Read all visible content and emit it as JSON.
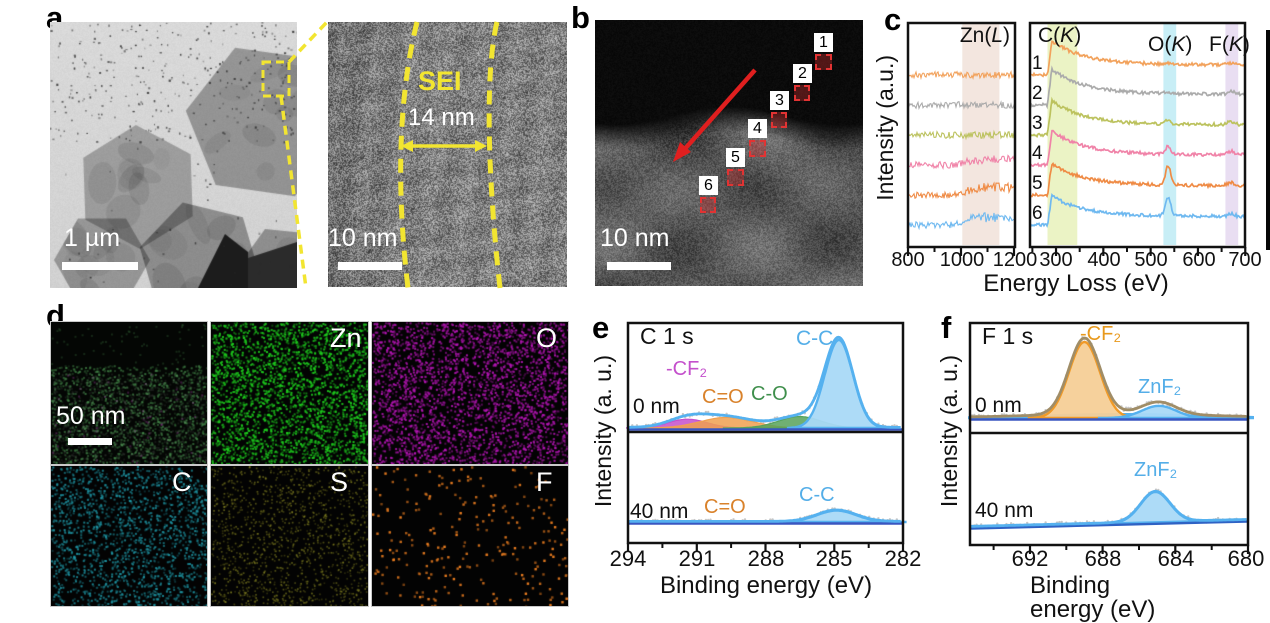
{
  "figure": {
    "panels": {
      "a": {
        "label": "a",
        "scalebar_left": "1 µm",
        "scalebar_right": "10 nm",
        "sei": "SEI",
        "thickness": "14 nm"
      },
      "b": {
        "label": "b",
        "scalebar": "10 nm",
        "boxes": [
          "1",
          "2",
          "3",
          "4",
          "5",
          "6"
        ]
      },
      "c": {
        "label": "c"
      },
      "d": {
        "label": "d",
        "scalebar": "50 nm",
        "elements": [
          "Zn",
          "O",
          "C",
          "S",
          "F"
        ],
        "map_colors": {
          "zn": "#1ecf1e",
          "o": "#bb16bb",
          "c": "#1f99a8",
          "s": "#a8a62a",
          "f": "#f08020"
        }
      },
      "e": {
        "label": "e"
      },
      "f": {
        "label": "f"
      }
    },
    "annotation_colors": {
      "yellow": "#f2e531",
      "red": "#e01f1f"
    }
  },
  "chart_data": [
    {
      "id": "eels-line-scan",
      "type": "line",
      "ylabel": "Intensity (a.u.)",
      "xlabel": "Energy Loss (eV)",
      "left_plot": {
        "xlim": [
          800,
          1204
        ],
        "major_ticks": [
          800,
          1000,
          1200
        ],
        "minor_ticks": [
          900,
          1100
        ],
        "edge_band": {
          "label_pre": "Zn(",
          "label_it": "L",
          "label_post": ")",
          "range_eV": [
            1005,
            1145
          ],
          "color": "#f3e6df"
        }
      },
      "right_plot": {
        "xlim": [
          245,
          700
        ],
        "major_ticks": [
          300,
          400,
          500,
          600,
          700
        ],
        "minor_ticks": [
          250,
          350,
          450,
          550,
          650
        ],
        "edge_bands": [
          {
            "label_pre": "C(",
            "label_it": "K",
            "label_post": ")",
            "range_eV": [
              282,
              345
            ],
            "color": "#ebf3c5"
          },
          {
            "label_pre": "O(",
            "label_it": "K",
            "label_post": ")",
            "range_eV": [
              527,
              554
            ],
            "color": "#c8eef6"
          },
          {
            "label_pre": "F(",
            "label_it": "K",
            "label_post": ")",
            "range_eV": [
              658,
              685
            ],
            "color": "#e9def2"
          }
        ]
      },
      "edge_onsets_eV": {
        "zn_L": 1020,
        "c_K": 284,
        "o_K": 532,
        "f_K": 685
      },
      "series": [
        {
          "label": "1",
          "color": "#f2a25c",
          "zn_L_edge": 0,
          "c_k": 1.0,
          "o_k": 0.05,
          "f_k": 0.3
        },
        {
          "label": "2",
          "color": "#ababab",
          "zn_L_edge": 0,
          "c_k": 1.05,
          "o_k": 0.08,
          "f_k": 0.55
        },
        {
          "label": "3",
          "color": "#bcc25e",
          "zn_L_edge": 0,
          "c_k": 1.0,
          "o_k": 0.2,
          "f_k": 0.55
        },
        {
          "label": "4",
          "color": "#f083a8",
          "zn_L_edge": 0.7,
          "c_k": 1.0,
          "o_k": 0.3,
          "f_k": 0.55
        },
        {
          "label": "5",
          "color": "#ef8b45",
          "zn_L_edge": 1.0,
          "c_k": 0.92,
          "o_k": 0.75,
          "f_k": 0.5
        },
        {
          "label": "6",
          "color": "#6fb9f0",
          "zn_L_edge": 1.0,
          "c_k": 0.85,
          "o_k": 0.7,
          "f_k": 0.35
        }
      ]
    },
    {
      "id": "xps-c1s",
      "type": "area",
      "title": "C 1 s",
      "xlabel": "Binding energy (eV)",
      "ylabel": "Intensity (a. u.)",
      "xlim": [
        294,
        282
      ],
      "major_ticks": [
        294,
        291,
        288,
        285,
        282
      ],
      "minor_ticks": [
        292.5,
        289.5,
        286.5,
        283.5
      ],
      "subplots": [
        {
          "depth": "0 nm",
          "peaks": [
            {
              "label": "-CF₂",
              "center_eV": 291.4,
              "fwhm": 2.0,
              "rel_height": 0.1,
              "color": "#c450cc"
            },
            {
              "label": "C=O",
              "center_eV": 289.7,
              "fwhm": 2.7,
              "rel_height": 0.12,
              "color": "#f0a050"
            },
            {
              "label": "C-O",
              "center_eV": 286.5,
              "fwhm": 2.2,
              "rel_height": 0.13,
              "color": "#57a25b"
            },
            {
              "label": "C-C",
              "center_eV": 284.8,
              "fwhm": 1.45,
              "rel_height": 1.0,
              "color": "#55b1ef",
              "fill": "#a9d9f7"
            }
          ],
          "envelope_color": "#55b1ef",
          "baseline_color": "#3a56c0"
        },
        {
          "depth": "40 nm",
          "peaks": [
            {
              "label": "C-C",
              "center_eV": 284.9,
              "fwhm": 2.0,
              "rel_height": 0.13,
              "color": "#55b1ef",
              "fill": "#a9d9f7"
            }
          ],
          "extra_labels": [
            "C=O"
          ],
          "envelope_color": "#55b1ef",
          "baseline_color": "#3a56c0"
        }
      ]
    },
    {
      "id": "xps-f1s",
      "type": "area",
      "title": "F 1 s",
      "xlabel": "Binding energy (eV)",
      "ylabel": "Intensity (a. u.)",
      "xlim": [
        695,
        680
      ],
      "major_ticks": [
        692,
        688,
        684,
        680
      ],
      "minor_ticks": [
        694,
        690,
        686,
        682
      ],
      "subplots": [
        {
          "depth": "0 nm",
          "peaks": [
            {
              "label": "",
              "center_eV": 687.0,
              "fwhm": 10.0,
              "rel_height": 0.05,
              "color": "#55b1ef",
              "fill": "#a9d9f7"
            },
            {
              "label": "-CF₂",
              "center_eV": 689.0,
              "fwhm": 2.0,
              "rel_height": 1.0,
              "color": "#f09a28",
              "fill": "#f6cf97"
            },
            {
              "label": "ZnF₂",
              "center_eV": 684.9,
              "fwhm": 2.2,
              "rel_height": 0.16,
              "color": "#55b1ef",
              "fill": "#a9d9f7"
            }
          ],
          "envelope_color": "#a08d67",
          "baseline_color": "#3a56c0"
        },
        {
          "depth": "40 nm",
          "peaks": [
            {
              "label": "ZnF₂",
              "center_eV": 685.1,
              "fwhm": 1.9,
              "rel_height": 0.4,
              "color": "#55b1ef",
              "fill": "#a9d9f7"
            }
          ],
          "envelope_color": "#55b1ef",
          "baseline_color": "#2f62c4"
        }
      ]
    }
  ]
}
